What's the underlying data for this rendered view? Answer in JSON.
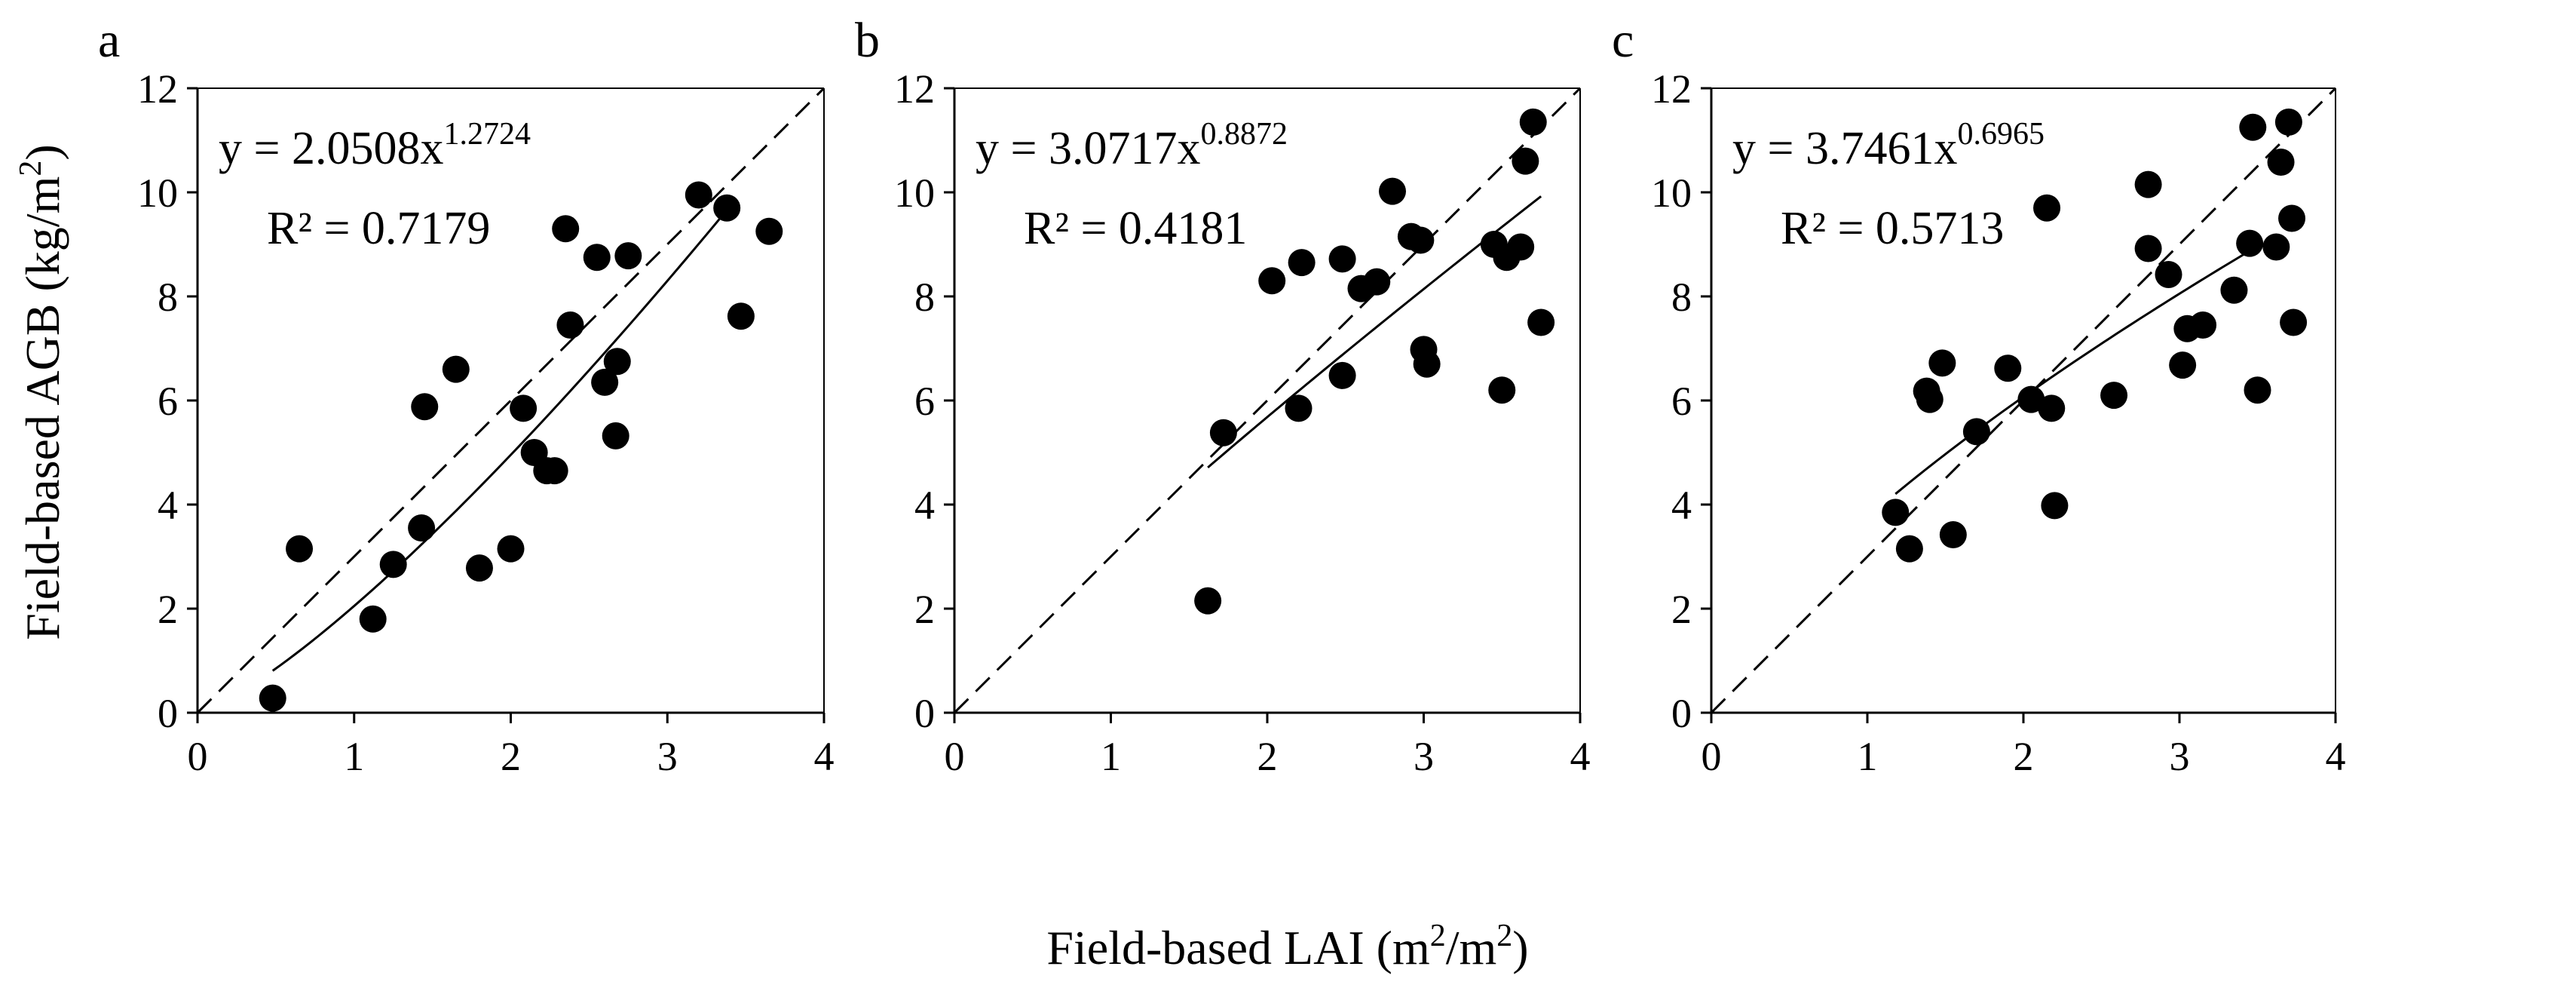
{
  "x_axis_label_main": "Field-based LAI (m",
  "x_axis_label_sup1": "2",
  "x_axis_label_mid": "/m",
  "x_axis_label_sup2": "2",
  "x_axis_label_end": ")",
  "y_axis_label_main": "Field-based AGB (kg/m",
  "y_axis_label_sup": "2",
  "y_axis_label_end": ")",
  "colors": {
    "points": "#000000",
    "lines": "#000000",
    "background": "#ffffff"
  },
  "chart_data": [
    {
      "type": "scatter",
      "panel_label": "a",
      "xlim": [
        0,
        4
      ],
      "ylim": [
        0,
        12
      ],
      "x_ticks": [
        "0",
        "1",
        "2",
        "3",
        "4"
      ],
      "y_ticks": [
        "0",
        "2",
        "4",
        "6",
        "8",
        "10",
        "12"
      ],
      "equation_prefix": "y = 2.0508x",
      "equation_exponent": "1.2724",
      "r2_text": "R² = 0.7179",
      "fit": {
        "a": 2.0508,
        "b": 1.2724,
        "x_range": [
          0.48,
          3.42
        ]
      },
      "reference_line": "1:1 (dashed)",
      "points": [
        [
          0.48,
          0.28
        ],
        [
          0.65,
          3.15
        ],
        [
          1.12,
          1.8
        ],
        [
          1.25,
          2.85
        ],
        [
          1.43,
          3.55
        ],
        [
          1.45,
          5.88
        ],
        [
          1.65,
          6.6
        ],
        [
          1.8,
          2.78
        ],
        [
          2.0,
          3.15
        ],
        [
          2.08,
          5.85
        ],
        [
          2.15,
          5.0
        ],
        [
          2.23,
          4.65
        ],
        [
          2.28,
          4.65
        ],
        [
          2.35,
          9.3
        ],
        [
          2.38,
          7.45
        ],
        [
          2.55,
          8.75
        ],
        [
          2.6,
          6.35
        ],
        [
          2.67,
          5.32
        ],
        [
          2.68,
          6.75
        ],
        [
          2.75,
          8.78
        ],
        [
          3.2,
          9.95
        ],
        [
          3.38,
          9.7
        ],
        [
          3.47,
          7.62
        ],
        [
          3.65,
          9.25
        ]
      ]
    },
    {
      "type": "scatter",
      "panel_label": "b",
      "xlim": [
        0,
        4
      ],
      "ylim": [
        0,
        12
      ],
      "x_ticks": [
        "0",
        "1",
        "2",
        "3",
        "4"
      ],
      "y_ticks": [
        "0",
        "2",
        "4",
        "6",
        "8",
        "10",
        "12"
      ],
      "equation_prefix": "y = 3.0717x",
      "equation_exponent": "0.8872",
      "r2_text": "R² = 0.4181",
      "fit": {
        "a": 3.0717,
        "b": 0.8872,
        "x_range": [
          1.62,
          3.75
        ]
      },
      "reference_line": "1:1 (dashed)",
      "points": [
        [
          1.62,
          2.15
        ],
        [
          1.72,
          5.38
        ],
        [
          2.03,
          8.3
        ],
        [
          2.2,
          5.85
        ],
        [
          2.22,
          8.65
        ],
        [
          2.48,
          8.72
        ],
        [
          2.48,
          6.48
        ],
        [
          2.6,
          8.15
        ],
        [
          2.7,
          8.28
        ],
        [
          2.8,
          10.02
        ],
        [
          2.92,
          9.15
        ],
        [
          2.98,
          9.08
        ],
        [
          3.0,
          6.98
        ],
        [
          3.02,
          6.7
        ],
        [
          3.45,
          9.0
        ],
        [
          3.5,
          6.2
        ],
        [
          3.53,
          8.75
        ],
        [
          3.62,
          8.95
        ],
        [
          3.65,
          10.6
        ],
        [
          3.7,
          11.35
        ],
        [
          3.75,
          7.5
        ]
      ]
    },
    {
      "type": "scatter",
      "panel_label": "c",
      "xlim": [
        0,
        4
      ],
      "ylim": [
        0,
        12
      ],
      "x_ticks": [
        "0",
        "1",
        "2",
        "3",
        "4"
      ],
      "y_ticks": [
        "0",
        "2",
        "4",
        "6",
        "8",
        "10",
        "12"
      ],
      "equation_prefix": "y = 3.7461x",
      "equation_exponent": "0.6965",
      "r2_text": "R² = 0.5713",
      "fit": {
        "a": 3.7461,
        "b": 0.6965,
        "x_range": [
          1.18,
          3.47
        ]
      },
      "reference_line": "1:1 (dashed)",
      "points": [
        [
          1.18,
          3.85
        ],
        [
          1.27,
          3.15
        ],
        [
          1.38,
          6.18
        ],
        [
          1.4,
          6.02
        ],
        [
          1.48,
          6.72
        ],
        [
          1.55,
          3.42
        ],
        [
          1.7,
          5.4
        ],
        [
          1.9,
          6.62
        ],
        [
          2.05,
          6.02
        ],
        [
          2.15,
          9.7
        ],
        [
          2.18,
          5.85
        ],
        [
          2.2,
          3.98
        ],
        [
          2.58,
          6.1
        ],
        [
          2.8,
          10.15
        ],
        [
          2.8,
          8.92
        ],
        [
          2.93,
          8.42
        ],
        [
          3.02,
          6.68
        ],
        [
          3.05,
          7.38
        ],
        [
          3.15,
          7.45
        ],
        [
          3.35,
          8.12
        ],
        [
          3.45,
          9.02
        ],
        [
          3.47,
          11.25
        ],
        [
          3.62,
          8.95
        ],
        [
          3.65,
          10.58
        ],
        [
          3.7,
          11.35
        ],
        [
          3.72,
          9.5
        ],
        [
          3.73,
          7.5
        ],
        [
          3.5,
          6.2
        ]
      ]
    }
  ]
}
